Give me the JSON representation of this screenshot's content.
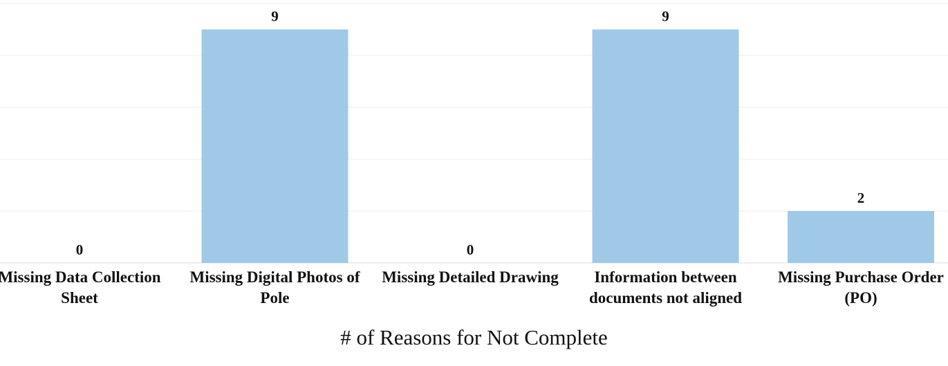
{
  "chart_data": {
    "type": "bar",
    "x_label": "# of Reasons for Not Complete",
    "categories": [
      "Missing Data Collection Sheet",
      "Missing Digital Photos of Pole",
      "Missing Detailed Drawing",
      "Information between documents not aligned",
      "Missing Purchase Order (PO)"
    ],
    "values": [
      0,
      9,
      0,
      9,
      2
    ],
    "color": "#a0c9e8",
    "ylim": [
      0,
      10
    ],
    "yticks": [
      0,
      2,
      4,
      6,
      8,
      10
    ],
    "grid": true
  }
}
